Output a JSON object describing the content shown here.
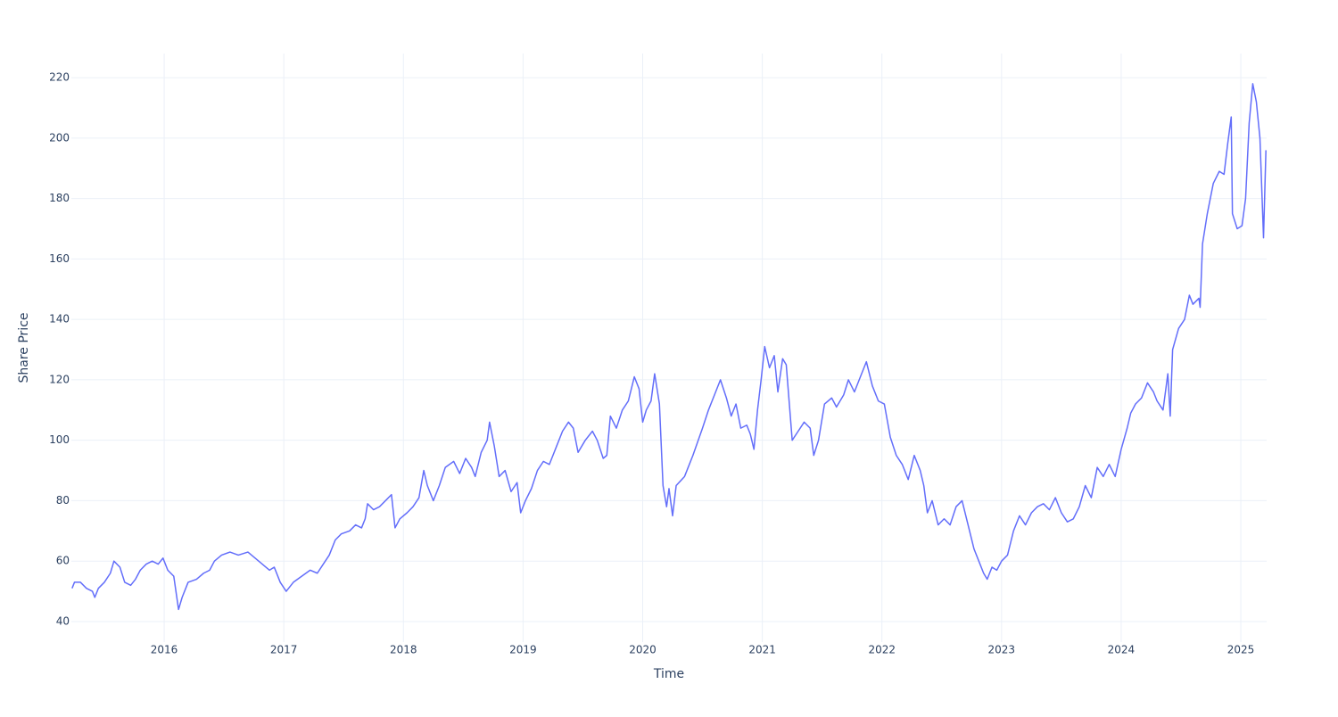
{
  "chart_data": {
    "type": "line",
    "xlabel": "Time",
    "ylabel": "Share Price",
    "color": "#636efa",
    "grid": true,
    "xlim": [
      2015.224,
      2025.216
    ],
    "ylim": [
      33.2,
      228
    ],
    "xticks": [
      2016,
      2017,
      2018,
      2019,
      2020,
      2021,
      2022,
      2023,
      2024,
      2025
    ],
    "yticks": [
      40,
      60,
      80,
      100,
      120,
      140,
      160,
      180,
      200,
      220
    ],
    "x": [
      2015.23,
      2015.25,
      2015.3,
      2015.35,
      2015.4,
      2015.42,
      2015.45,
      2015.5,
      2015.55,
      2015.58,
      2015.63,
      2015.67,
      2015.72,
      2015.76,
      2015.8,
      2015.85,
      2015.9,
      2015.95,
      2015.99,
      2016.03,
      2016.08,
      2016.12,
      2016.15,
      2016.2,
      2016.27,
      2016.33,
      2016.38,
      2016.42,
      2016.48,
      2016.55,
      2016.62,
      2016.7,
      2016.76,
      2016.82,
      2016.88,
      2016.92,
      2016.97,
      2017.02,
      2017.08,
      2017.15,
      2017.22,
      2017.28,
      2017.33,
      2017.38,
      2017.43,
      2017.48,
      2017.55,
      2017.6,
      2017.65,
      2017.68,
      2017.7,
      2017.75,
      2017.8,
      2017.85,
      2017.9,
      2017.93,
      2017.97,
      2018.03,
      2018.08,
      2018.13,
      2018.17,
      2018.2,
      2018.25,
      2018.3,
      2018.35,
      2018.42,
      2018.47,
      2018.52,
      2018.57,
      2018.6,
      2018.65,
      2018.7,
      2018.72,
      2018.76,
      2018.8,
      2018.85,
      2018.9,
      2018.95,
      2018.98,
      2019.02,
      2019.07,
      2019.12,
      2019.17,
      2019.22,
      2019.28,
      2019.33,
      2019.38,
      2019.42,
      2019.46,
      2019.52,
      2019.58,
      2019.62,
      2019.67,
      2019.7,
      2019.73,
      2019.78,
      2019.83,
      2019.88,
      2019.93,
      2019.97,
      2020.0,
      2020.03,
      2020.07,
      2020.1,
      2020.14,
      2020.17,
      2020.2,
      2020.22,
      2020.25,
      2020.28,
      2020.35,
      2020.42,
      2020.5,
      2020.55,
      2020.6,
      2020.65,
      2020.7,
      2020.74,
      2020.78,
      2020.82,
      2020.87,
      2020.9,
      2020.93,
      2020.96,
      2020.99,
      2021.02,
      2021.06,
      2021.1,
      2021.13,
      2021.17,
      2021.2,
      2021.25,
      2021.3,
      2021.35,
      2021.4,
      2021.43,
      2021.47,
      2021.52,
      2021.58,
      2021.62,
      2021.68,
      2021.72,
      2021.77,
      2021.82,
      2021.87,
      2021.92,
      2021.97,
      2022.02,
      2022.07,
      2022.12,
      2022.17,
      2022.22,
      2022.27,
      2022.32,
      2022.35,
      2022.38,
      2022.42,
      2022.47,
      2022.52,
      2022.57,
      2022.62,
      2022.67,
      2022.72,
      2022.77,
      2022.8,
      2022.85,
      2022.88,
      2022.92,
      2022.96,
      2023.0,
      2023.05,
      2023.1,
      2023.15,
      2023.2,
      2023.25,
      2023.3,
      2023.35,
      2023.4,
      2023.45,
      2023.5,
      2023.55,
      2023.6,
      2023.65,
      2023.7,
      2023.75,
      2023.8,
      2023.85,
      2023.9,
      2023.95,
      2024.0,
      2024.05,
      2024.08,
      2024.12,
      2024.17,
      2024.22,
      2024.27,
      2024.3,
      2024.35,
      2024.39,
      2024.41,
      2024.43,
      2024.48,
      2024.53,
      2024.57,
      2024.6,
      2024.65,
      2024.66,
      2024.68,
      2024.72,
      2024.77,
      2024.82,
      2024.86,
      2024.89,
      2024.92,
      2024.93,
      2024.97,
      2025.01,
      2025.04,
      2025.07,
      2025.1,
      2025.13,
      2025.16,
      2025.19,
      2025.21
    ],
    "values": [
      51,
      53,
      53,
      51,
      50,
      48,
      51,
      53,
      56,
      60,
      58,
      53,
      52,
      54,
      57,
      59,
      60,
      59,
      61,
      57,
      55,
      44,
      48,
      53,
      54,
      56,
      57,
      60,
      62,
      63,
      62,
      63,
      61,
      59,
      57,
      58,
      53,
      50,
      53,
      55,
      57,
      56,
      59,
      62,
      67,
      69,
      70,
      72,
      71,
      74,
      79,
      77,
      78,
      80,
      82,
      71,
      74,
      76,
      78,
      81,
      90,
      85,
      80,
      85,
      91,
      93,
      89,
      94,
      91,
      88,
      96,
      100,
      106,
      98,
      88,
      90,
      83,
      86,
      76,
      80,
      84,
      90,
      93,
      92,
      98,
      103,
      106,
      104,
      96,
      100,
      103,
      100,
      94,
      95,
      108,
      104,
      110,
      113,
      121,
      117,
      106,
      110,
      113,
      122,
      112,
      85,
      78,
      84,
      75,
      85,
      88,
      95,
      104,
      110,
      115,
      120,
      114,
      108,
      112,
      104,
      105,
      102,
      97,
      110,
      120,
      131,
      124,
      128,
      116,
      127,
      125,
      100,
      103,
      106,
      104,
      95,
      100,
      112,
      114,
      111,
      115,
      120,
      116,
      121,
      126,
      118,
      113,
      112,
      101,
      95,
      92,
      87,
      95,
      90,
      85,
      76,
      80,
      72,
      74,
      72,
      78,
      80,
      72,
      64,
      61,
      56,
      54,
      58,
      57,
      60,
      62,
      70,
      75,
      72,
      76,
      78,
      79,
      77,
      81,
      76,
      73,
      74,
      78,
      85,
      81,
      91,
      88,
      92,
      88,
      97,
      104,
      109,
      112,
      114,
      119,
      116,
      113,
      110,
      122,
      108,
      130,
      137,
      140,
      148,
      145,
      147,
      144,
      165,
      175,
      185,
      189,
      188,
      198,
      207,
      175,
      170,
      171,
      180,
      205,
      218,
      212,
      200,
      167,
      196
    ]
  }
}
